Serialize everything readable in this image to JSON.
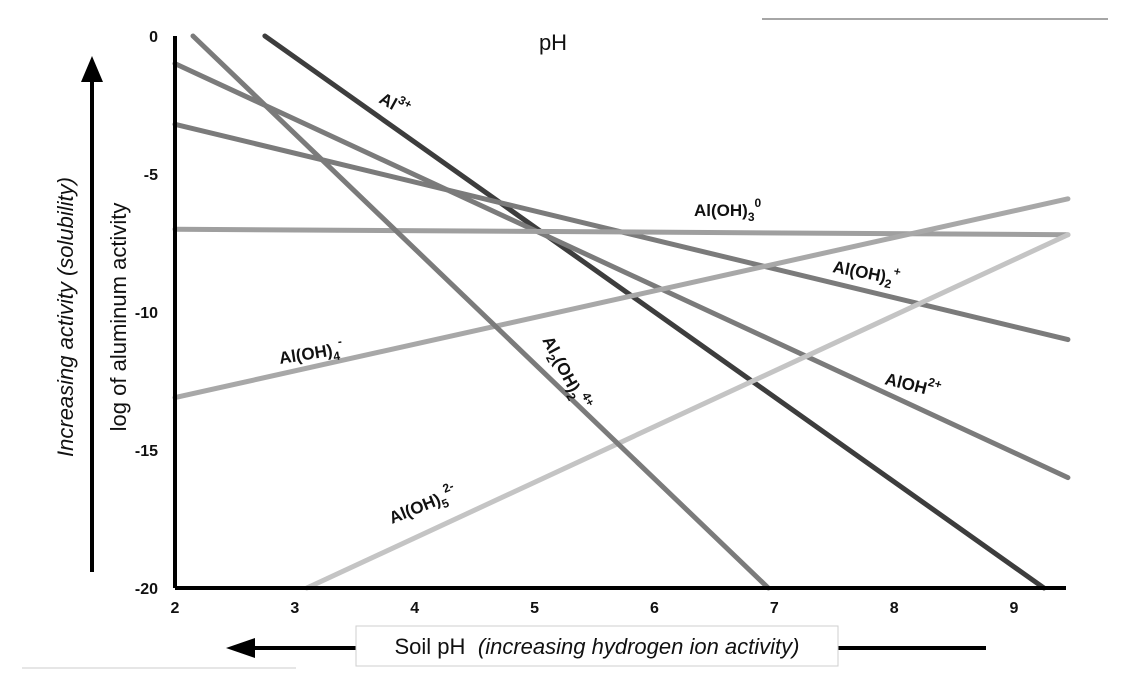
{
  "chart_data": {
    "type": "line",
    "title": "pH",
    "xlabel": "Soil pH",
    "xlabel_note": "(increasing hydrogen ion activity)",
    "ylabel": "log of aluminum activity",
    "ylabel_note": "Increasing activity (solubility)",
    "xlim": [
      2,
      9.5
    ],
    "ylim": [
      -20,
      0
    ],
    "xticks": [
      2,
      3,
      4,
      5,
      6,
      7,
      8,
      9
    ],
    "yticks": [
      0,
      -5,
      -10,
      -15,
      -20
    ],
    "grid": false,
    "legend": "none",
    "series": [
      {
        "name": "Al3+",
        "label_parts": {
          "base": "Al",
          "sup": "3+"
        },
        "color": "#3d3d3d",
        "points": [
          [
            2.75,
            0
          ],
          [
            9.25,
            -20
          ]
        ]
      },
      {
        "name": "AlOH2+",
        "label_parts": {
          "base": "AlOH",
          "sup": "2+"
        },
        "color": "#7b7b7b",
        "points": [
          [
            2,
            -1
          ],
          [
            9.45,
            -16
          ]
        ]
      },
      {
        "name": "Al(OH)2+",
        "label_parts": {
          "base": "Al(OH)",
          "sub": "2",
          "sup": "+"
        },
        "color": "#7b7b7b",
        "points": [
          [
            2,
            -3.2
          ],
          [
            9.45,
            -11
          ]
        ]
      },
      {
        "name": "Al(OH)30",
        "label_parts": {
          "base": "Al(OH)",
          "sub": "3",
          "sup": "0"
        },
        "color": "#9f9f9f",
        "points": [
          [
            2,
            -7
          ],
          [
            9.45,
            -7.2
          ]
        ]
      },
      {
        "name": "Al(OH)4-",
        "label_parts": {
          "base": "Al(OH)",
          "sub": "4",
          "sup": "-"
        },
        "color": "#a8a8a8",
        "points": [
          [
            2,
            -13.1
          ],
          [
            9.45,
            -5.9
          ]
        ]
      },
      {
        "name": "Al(OH)52-",
        "label_parts": {
          "base": "Al(OH)",
          "sub": "5",
          "sup": "2-"
        },
        "color": "#c4c4c4",
        "points": [
          [
            3.1,
            -20
          ],
          [
            9.45,
            -7.2
          ]
        ]
      },
      {
        "name": "Al2(OH)24+",
        "label_parts": {
          "base": "Al",
          "sub": "2",
          "mid": "(OH)",
          "sub2": "2",
          "sup": "4+"
        },
        "color": "#7b7b7b",
        "points": [
          [
            2.15,
            0
          ],
          [
            6.95,
            -20
          ]
        ]
      }
    ]
  }
}
